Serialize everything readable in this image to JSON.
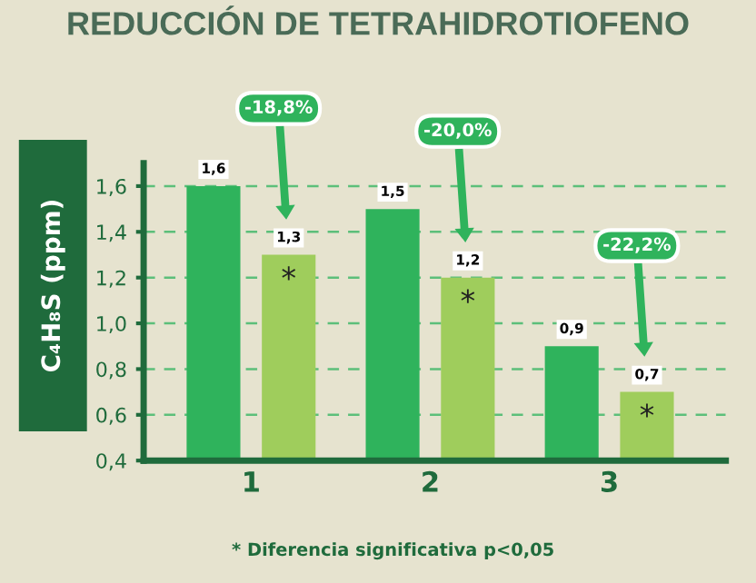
{
  "chart_data": {
    "type": "bar",
    "title": "REDUCCIÓN DE TETRAHIDROTIOFENO",
    "ylabel": "C₄H₈S (ppm)",
    "categories": [
      "1",
      "2",
      "3"
    ],
    "series": [
      {
        "color": "#2fb35c",
        "values": [
          1.6,
          1.5,
          0.9
        ],
        "value_labels": [
          "1,6",
          "1,5",
          "0,9"
        ]
      },
      {
        "color": "#9fcd5c",
        "values": [
          1.3,
          1.2,
          0.7
        ],
        "value_labels": [
          "1,3",
          "1,2",
          "0,7"
        ]
      }
    ],
    "ylim": [
      0.4,
      1.7
    ],
    "yticks": [
      {
        "value": 0.4,
        "label": "0,4"
      },
      {
        "value": 0.6,
        "label": "0,6"
      },
      {
        "value": 0.8,
        "label": "0,8"
      },
      {
        "value": 1.0,
        "label": "1,0"
      },
      {
        "value": 1.2,
        "label": "1,2"
      },
      {
        "value": 1.4,
        "label": "1,4"
      },
      {
        "value": 1.6,
        "label": "1,6"
      }
    ],
    "grid": "y",
    "legend": false,
    "annotations": [
      "-18,8%",
      "-20,0%",
      "-22,2%",
      "*",
      "*",
      "*",
      "* Diferencia significativa p<0,05"
    ]
  }
}
